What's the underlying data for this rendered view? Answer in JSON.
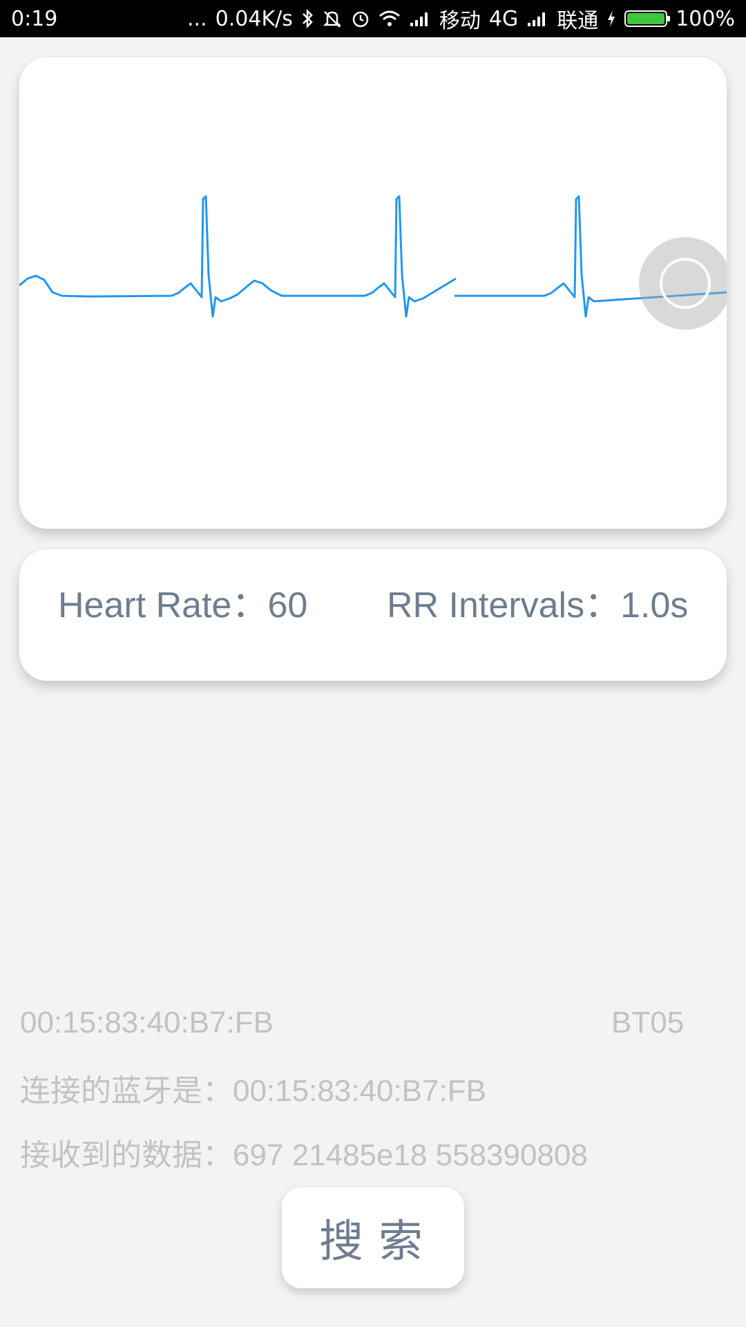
{
  "status_bar": {
    "time": "0:19",
    "dots": "...",
    "speed": "0.04K/s",
    "carrier1": "移动",
    "network": "4G",
    "carrier2": "联通",
    "battery": "100%",
    "battery_level": 1.0,
    "battery_color": "#3ec53e",
    "icons": [
      "bluetooth-icon",
      "mute-icon",
      "alarm-icon",
      "wifi-icon",
      "signal-icon",
      "signal-icon",
      "charging-icon",
      "battery-icon"
    ]
  },
  "ecg": {
    "line_color": "#2196f3",
    "touch_indicator": "touch-indicator"
  },
  "stats": {
    "heart_rate": "Heart Rate：60",
    "rr_intervals": "RR Intervals：1.0s"
  },
  "device": {
    "mac": "00:15:83:40:B7:FB",
    "name": "BT05",
    "connected": "连接的蓝牙是：00:15:83:40:B7:FB",
    "received": "接收到的数据：697 21485e18 558390808"
  },
  "search_button": "搜索"
}
